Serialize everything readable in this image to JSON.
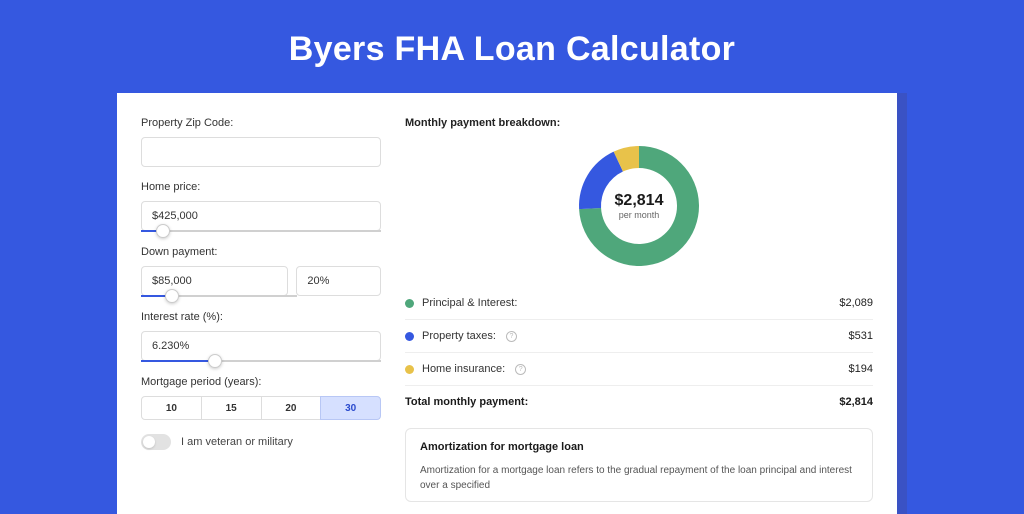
{
  "page_title": "Byers FHA Loan Calculator",
  "colors": {
    "page_bg": "#3558e0",
    "card_shadow": "#3a52c4",
    "accent_blue": "#3558e0",
    "donut_green": "#4fa77b",
    "donut_blue": "#3558e0",
    "donut_yellow": "#e8c24a"
  },
  "form": {
    "zip": {
      "label": "Property Zip Code:",
      "value": ""
    },
    "home_price": {
      "label": "Home price:",
      "value": "$425,000",
      "slider_pct": 9
    },
    "down_payment": {
      "label": "Down payment:",
      "amount": "$85,000",
      "pct": "20%",
      "slider_pct": 20
    },
    "interest": {
      "label": "Interest rate (%):",
      "value": "6.230%",
      "slider_pct": 31
    },
    "period": {
      "label": "Mortgage period (years):",
      "options": [
        "10",
        "15",
        "20",
        "30"
      ],
      "selected": "30"
    },
    "veteran": {
      "label": "I am veteran or military",
      "checked": false
    }
  },
  "breakdown": {
    "title": "Monthly payment breakdown:",
    "donut": {
      "amount": "$2,814",
      "sub": "per month",
      "slices": [
        {
          "label": "Principal & Interest",
          "color": "#4fa77b",
          "value": 2089,
          "start_deg": 0,
          "sweep_deg": 267
        },
        {
          "label": "Property taxes",
          "color": "#3558e0",
          "value": 531,
          "start_deg": 267,
          "sweep_deg": 68
        },
        {
          "label": "Home insurance",
          "color": "#e8c24a",
          "value": 194,
          "start_deg": 335,
          "sweep_deg": 25
        }
      ]
    },
    "lines": [
      {
        "dot_color": "#4fa77b",
        "label": "Principal & Interest:",
        "help": false,
        "value": "$2,089"
      },
      {
        "dot_color": "#3558e0",
        "label": "Property taxes:",
        "help": true,
        "value": "$531"
      },
      {
        "dot_color": "#e8c24a",
        "label": "Home insurance:",
        "help": true,
        "value": "$194"
      }
    ],
    "total": {
      "label": "Total monthly payment:",
      "value": "$2,814"
    }
  },
  "amortization": {
    "title": "Amortization for mortgage loan",
    "text": "Amortization for a mortgage loan refers to the gradual repayment of the loan principal and interest over a specified"
  }
}
